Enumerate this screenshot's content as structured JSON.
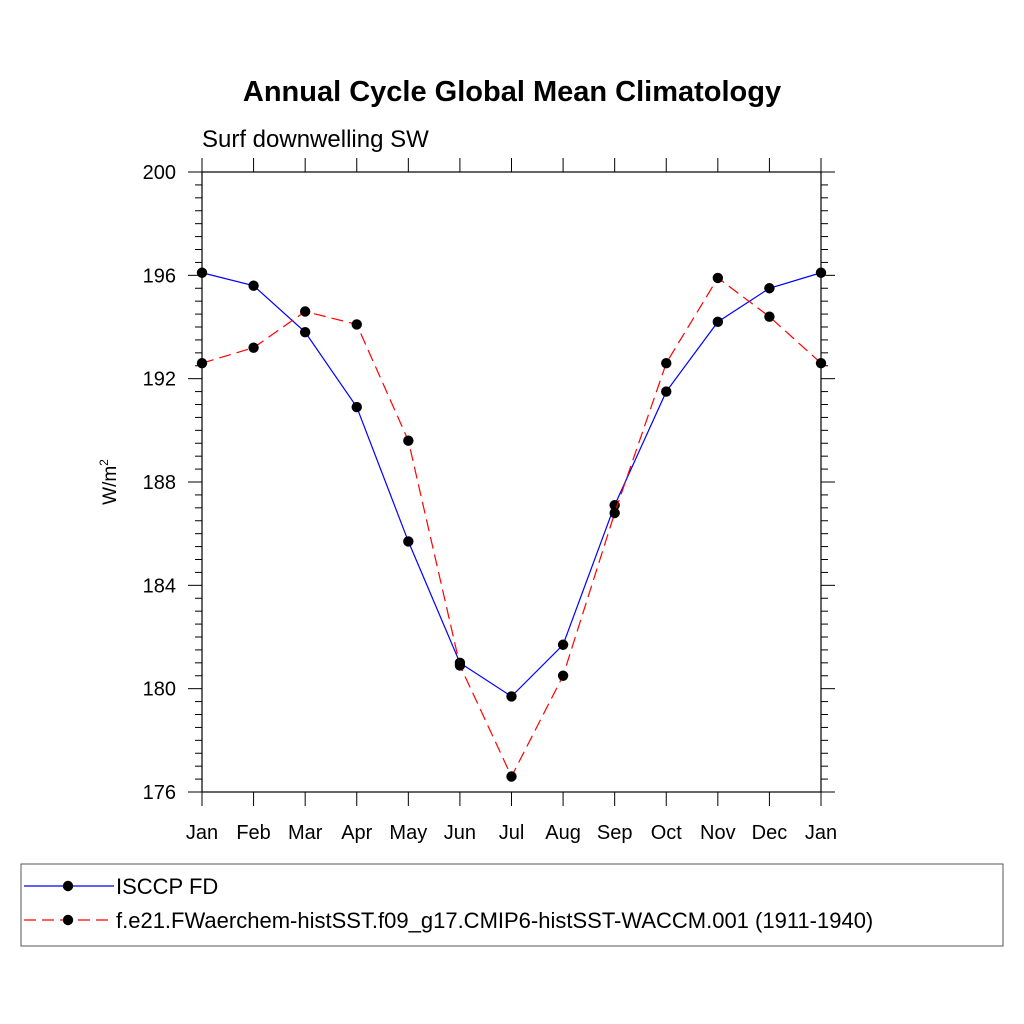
{
  "chart_data": {
    "type": "line",
    "title": "Annual Cycle Global Mean Climatology",
    "subtitle": "Surf downwelling SW",
    "ylabel": "W/m",
    "ylabel_sup": "2",
    "xlabel": "",
    "categories": [
      "Jan",
      "Feb",
      "Mar",
      "Apr",
      "May",
      "Jun",
      "Jul",
      "Aug",
      "Sep",
      "Oct",
      "Nov",
      "Dec",
      "Jan"
    ],
    "ylim": [
      176,
      200
    ],
    "yticks": [
      "176",
      "180",
      "184",
      "188",
      "192",
      "196",
      "200"
    ],
    "grid": false,
    "legend_position": "bottom",
    "series": [
      {
        "name": "ISCCP FD",
        "color": "#0000ff",
        "style": "solid",
        "values": [
          196.1,
          195.6,
          193.8,
          190.9,
          185.7,
          181.0,
          179.7,
          181.7,
          187.1,
          191.5,
          194.2,
          195.5,
          196.1
        ]
      },
      {
        "name": "f.e21.FWaerchem-histSST.f09_g17.CMIP6-histSST-WACCM.001 (1911-1940)",
        "color": "#ff0000",
        "style": "dashed",
        "values": [
          192.6,
          193.2,
          194.6,
          194.1,
          189.6,
          180.9,
          176.6,
          180.5,
          186.8,
          192.6,
          195.9,
          194.4,
          192.6
        ]
      }
    ]
  }
}
